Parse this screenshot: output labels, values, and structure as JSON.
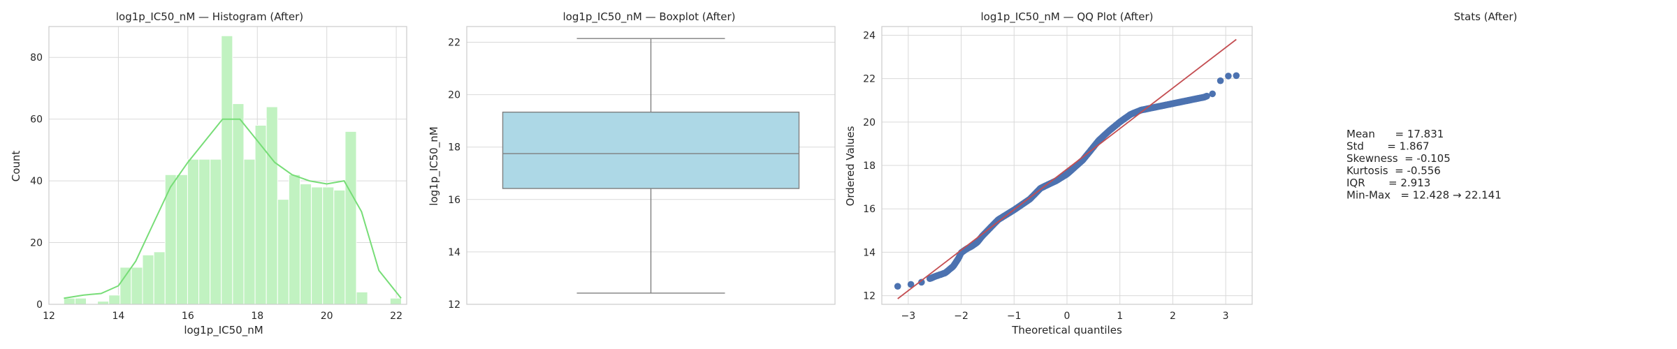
{
  "chart_data": [
    {
      "type": "histogram",
      "title": "log1p_IC50_nM — Histogram (After)",
      "xlabel": "log1p_IC50_nM",
      "ylabel": "Count",
      "xlim": [
        12,
        22.3
      ],
      "ylim": [
        0,
        90
      ],
      "xticks": [
        12,
        14,
        16,
        18,
        20,
        22
      ],
      "yticks": [
        0,
        20,
        40,
        60,
        80
      ],
      "grid": true,
      "bin_start": 12.428,
      "bin_width": 0.324,
      "counts": [
        2,
        2,
        0,
        1,
        3,
        12,
        12,
        16,
        17,
        42,
        42,
        47,
        47,
        47,
        87,
        65,
        47,
        58,
        64,
        34,
        42,
        39,
        38,
        38,
        37,
        56,
        4,
        0,
        0,
        2
      ],
      "kde": {
        "x": [
          12.43,
          13.0,
          13.5,
          14.0,
          14.5,
          15.0,
          15.5,
          16.0,
          16.5,
          17.0,
          17.5,
          18.0,
          18.5,
          19.0,
          19.5,
          20.0,
          20.5,
          21.0,
          21.5,
          22.14
        ],
        "y": [
          2,
          3,
          3.5,
          6,
          14,
          26,
          38,
          46,
          53,
          60,
          60,
          53,
          46,
          42,
          40,
          39,
          40,
          30,
          11,
          2
        ]
      },
      "bar_color": "#c1f2c1",
      "bar_edge": "#ffffff",
      "kde_color": "#77dd77"
    },
    {
      "type": "boxplot",
      "title": "log1p_IC50_nM — Boxplot (After)",
      "ylabel": "log1p_IC50_nM",
      "ylim": [
        12,
        22.6
      ],
      "yticks": [
        12,
        14,
        16,
        18,
        20,
        22
      ],
      "grid": true,
      "min": 12.428,
      "q1": 16.42,
      "median": 17.75,
      "q3": 19.333,
      "max": 22.141,
      "box_color": "#add8e6"
    },
    {
      "type": "scatter",
      "title": "log1p_IC50_nM — QQ Plot (After)",
      "xlabel": "Theoretical quantiles",
      "ylabel": "Ordered Values",
      "xlim": [
        -3.5,
        3.5
      ],
      "ylim": [
        11.6,
        24.4
      ],
      "xticks": [
        -3,
        -2,
        -1,
        0,
        1,
        2,
        3
      ],
      "yticks": [
        12,
        14,
        16,
        18,
        20,
        22,
        24
      ],
      "grid": true,
      "fit_line": {
        "slope": 1.867,
        "intercept": 17.831,
        "x_range": [
          -3.2,
          3.2
        ]
      },
      "quantile_curve": {
        "x": [
          -3.2,
          -2.95,
          -2.75,
          -2.5,
          -2.3,
          -2.15,
          -2.05,
          -2.0,
          -1.9,
          -1.8,
          -1.7,
          -1.6,
          -1.5,
          -1.3,
          -1.0,
          -0.7,
          -0.5,
          -0.2,
          0.0,
          0.3,
          0.6,
          0.8,
          1.0,
          1.2,
          1.4,
          1.6,
          1.8,
          2.0,
          2.2,
          2.4,
          2.6,
          2.75,
          2.9,
          3.05,
          3.2
        ],
        "y": [
          12.43,
          12.52,
          12.62,
          12.88,
          13.05,
          13.35,
          13.72,
          13.98,
          14.15,
          14.28,
          14.45,
          14.75,
          15.0,
          15.5,
          15.95,
          16.45,
          16.95,
          17.3,
          17.6,
          18.25,
          19.15,
          19.6,
          20.0,
          20.35,
          20.55,
          20.65,
          20.75,
          20.85,
          20.95,
          21.05,
          21.15,
          21.3,
          21.9,
          22.12,
          22.14
        ]
      },
      "points_color": "#4c72b0",
      "line_color": "#c44e52"
    }
  ],
  "stats": {
    "title": "Stats (After)",
    "lines": [
      "Mean      = 17.831",
      "Std       = 1.867",
      "Skewness  = -0.105",
      "Kurtosis  = -0.556",
      "IQR       = 2.913",
      "Min-Max   = 12.428 → 22.141"
    ]
  }
}
